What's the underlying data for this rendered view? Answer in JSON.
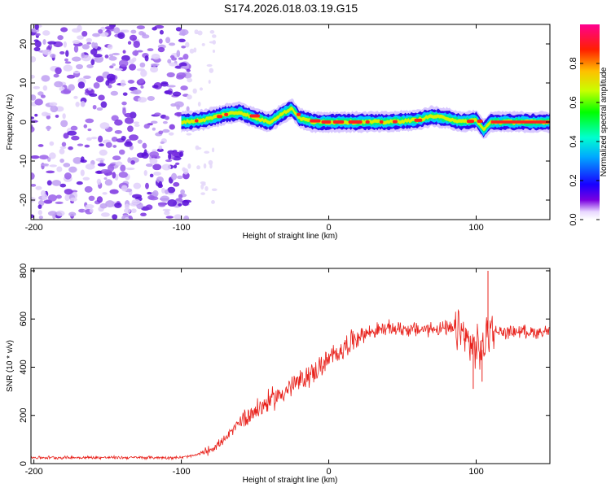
{
  "figure_title": "S174.2026.018.03.19.G15",
  "chart_data": [
    {
      "type": "heatmap",
      "title": "S174.2026.018.03.19.G15",
      "xlabel": "Height of straight line (km)",
      "ylabel": "Frequency (Hz)",
      "xlim": [
        -202,
        150
      ],
      "ylim": [
        -25,
        25
      ],
      "xticks": [
        -200,
        -100,
        0,
        100
      ],
      "xtick_labels": [
        "-200",
        "-100",
        "0",
        "100"
      ],
      "yticks": [
        -20,
        -10,
        0,
        10,
        20
      ],
      "ytick_labels": [
        "-20",
        "-10",
        "0",
        "10",
        "20"
      ],
      "colorbar": {
        "label": "Normalized spectral amplitude",
        "range": [
          0,
          1
        ],
        "ticks": [
          0.0,
          0.2,
          0.4,
          0.6,
          0.8
        ],
        "tick_labels": [
          "0.0",
          "0.2",
          "0.4",
          "0.6",
          "0.8"
        ],
        "colormap": [
          "#ffffff",
          "#5a00d8",
          "#0000ff",
          "#00c8ff",
          "#00ff00",
          "#c8ff00",
          "#ffc000",
          "#ff0000",
          "#ff00a0"
        ]
      },
      "noise_region_km": [
        -202,
        -95
      ],
      "signal_trace": {
        "x_km": [
          -100,
          -85,
          -70,
          -60,
          -50,
          -40,
          -30,
          -25,
          -20,
          -10,
          0,
          20,
          40,
          60,
          70,
          80,
          90,
          100,
          105,
          110,
          150
        ],
        "freq_hz": [
          0,
          0.5,
          2,
          2.5,
          1,
          0,
          2.5,
          3.5,
          1,
          0,
          0,
          0,
          0,
          0.5,
          1.5,
          1,
          0,
          0.5,
          -2,
          0,
          0
        ]
      }
    },
    {
      "type": "line",
      "xlabel": "Height of straight line (km)",
      "ylabel": "SNR (10 * v/v)",
      "xlim": [
        -202,
        150
      ],
      "ylim": [
        0,
        810
      ],
      "xticks": [
        -200,
        -100,
        0,
        100
      ],
      "xtick_labels": [
        "-200",
        "-100",
        "0",
        "100"
      ],
      "yticks": [
        0,
        200,
        400,
        600,
        800
      ],
      "ytick_labels": [
        "0",
        "200",
        "400",
        "600",
        "800"
      ],
      "series": [
        {
          "name": "SNR",
          "color": "#e8201a",
          "x": [
            -202,
            -180,
            -160,
            -140,
            -120,
            -100,
            -90,
            -80,
            -70,
            -65,
            -60,
            -55,
            -50,
            -40,
            -30,
            -20,
            -10,
            0,
            10,
            20,
            30,
            40,
            50,
            60,
            70,
            80,
            90,
            95,
            100,
            105,
            108,
            110,
            120,
            130,
            140,
            150
          ],
          "y": [
            25,
            25,
            25,
            25,
            25,
            25,
            35,
            60,
            100,
            140,
            180,
            200,
            220,
            260,
            300,
            340,
            380,
            430,
            480,
            530,
            550,
            560,
            560,
            555,
            560,
            560,
            545,
            500,
            480,
            470,
            560,
            550,
            545,
            550,
            545,
            550
          ],
          "spikes": [
            {
              "x": 108,
              "y": 800
            },
            {
              "x": 98,
              "y": 310
            },
            {
              "x": 104,
              "y": 340
            }
          ]
        }
      ]
    }
  ]
}
